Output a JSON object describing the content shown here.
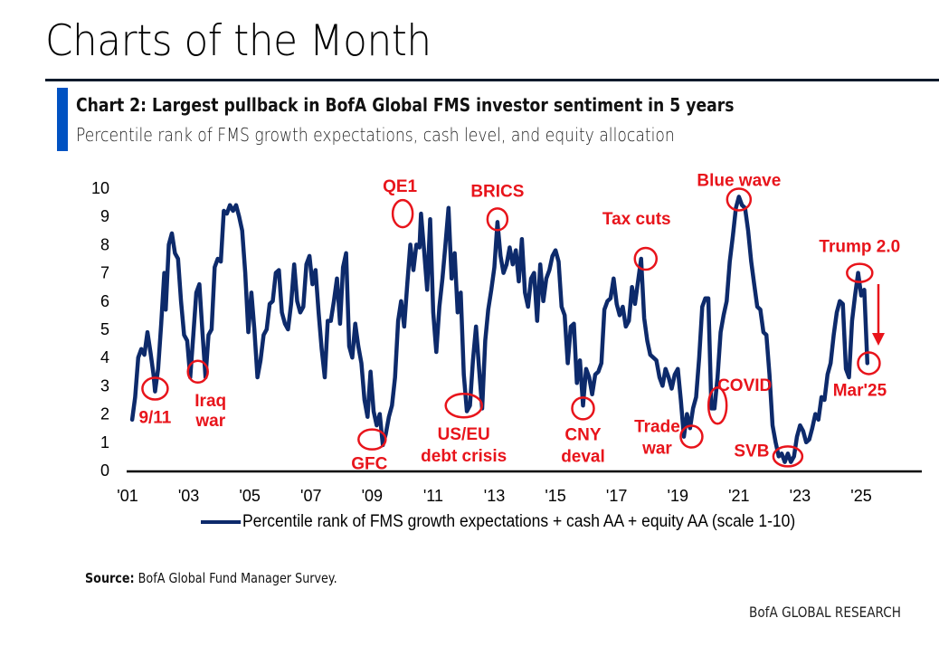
{
  "page": {
    "title": "Charts of the Month",
    "source_label": "Source:",
    "source_text": "BofA Global Fund Manager Survey.",
    "brand": "BofA GLOBAL RESEARCH",
    "accent_color": "#0052c2"
  },
  "chart_data": {
    "type": "line",
    "title": "Chart 2: Largest pullback in BofA Global FMS investor sentiment in 5 years",
    "subtitle": "Percentile rank of FMS growth expectations, cash level, and equity allocation",
    "xlabel": "",
    "ylabel": "",
    "xlim": [
      2001,
      2027
    ],
    "ylim": [
      0,
      10
    ],
    "yticks": [
      0,
      1,
      2,
      3,
      4,
      5,
      6,
      7,
      8,
      9,
      10
    ],
    "xticks": [
      {
        "value": 2001,
        "label": "'01"
      },
      {
        "value": 2003,
        "label": "'03"
      },
      {
        "value": 2005,
        "label": "'05"
      },
      {
        "value": 2007,
        "label": "'07"
      },
      {
        "value": 2009,
        "label": "'09"
      },
      {
        "value": 2011,
        "label": "'11"
      },
      {
        "value": 2013,
        "label": "'13"
      },
      {
        "value": 2015,
        "label": "'15"
      },
      {
        "value": 2017,
        "label": "'17"
      },
      {
        "value": 2019,
        "label": "'19"
      },
      {
        "value": 2021,
        "label": "'21"
      },
      {
        "value": 2023,
        "label": "'23"
      },
      {
        "value": 2025,
        "label": "'25"
      }
    ],
    "grid": false,
    "legend_position": "bottom",
    "line_color": "#0d2a6b",
    "annotation_color": "#e8141b",
    "series": [
      {
        "name": "Percentile rank of FMS growth expectations + cash AA + equity AA (scale 1-10)",
        "points": [
          [
            2001.15,
            1.8
          ],
          [
            2001.25,
            2.6
          ],
          [
            2001.35,
            4.0
          ],
          [
            2001.45,
            4.3
          ],
          [
            2001.55,
            4.1
          ],
          [
            2001.65,
            4.9
          ],
          [
            2001.75,
            4.2
          ],
          [
            2001.85,
            3.4
          ],
          [
            2001.9,
            2.8
          ],
          [
            2002.0,
            3.6
          ],
          [
            2002.1,
            5.2
          ],
          [
            2002.2,
            7.0
          ],
          [
            2002.25,
            5.7
          ],
          [
            2002.35,
            8.0
          ],
          [
            2002.45,
            8.4
          ],
          [
            2002.55,
            7.7
          ],
          [
            2002.65,
            7.5
          ],
          [
            2002.75,
            6.0
          ],
          [
            2002.85,
            4.8
          ],
          [
            2002.95,
            4.6
          ],
          [
            2003.05,
            3.3
          ],
          [
            2003.15,
            4.8
          ],
          [
            2003.25,
            6.3
          ],
          [
            2003.35,
            6.6
          ],
          [
            2003.45,
            4.9
          ],
          [
            2003.55,
            3.3
          ],
          [
            2003.65,
            4.8
          ],
          [
            2003.75,
            5.0
          ],
          [
            2003.85,
            7.2
          ],
          [
            2003.95,
            7.5
          ],
          [
            2004.05,
            7.4
          ],
          [
            2004.15,
            9.2
          ],
          [
            2004.25,
            9.1
          ],
          [
            2004.35,
            9.4
          ],
          [
            2004.45,
            9.2
          ],
          [
            2004.55,
            9.4
          ],
          [
            2004.65,
            9.0
          ],
          [
            2004.75,
            8.5
          ],
          [
            2004.85,
            7.0
          ],
          [
            2004.95,
            4.9
          ],
          [
            2005.05,
            6.3
          ],
          [
            2005.15,
            5.0
          ],
          [
            2005.25,
            3.3
          ],
          [
            2005.35,
            3.9
          ],
          [
            2005.45,
            4.8
          ],
          [
            2005.55,
            5.0
          ],
          [
            2005.65,
            5.9
          ],
          [
            2005.75,
            6.0
          ],
          [
            2005.85,
            7.0
          ],
          [
            2005.95,
            7.1
          ],
          [
            2006.05,
            5.6
          ],
          [
            2006.15,
            5.2
          ],
          [
            2006.25,
            5.0
          ],
          [
            2006.35,
            5.9
          ],
          [
            2006.45,
            7.3
          ],
          [
            2006.55,
            6.0
          ],
          [
            2006.65,
            5.6
          ],
          [
            2006.75,
            5.8
          ],
          [
            2006.85,
            7.3
          ],
          [
            2006.95,
            7.6
          ],
          [
            2007.05,
            6.6
          ],
          [
            2007.15,
            7.1
          ],
          [
            2007.25,
            5.6
          ],
          [
            2007.35,
            4.3
          ],
          [
            2007.45,
            3.3
          ],
          [
            2007.55,
            5.3
          ],
          [
            2007.65,
            5.3
          ],
          [
            2007.75,
            6.0
          ],
          [
            2007.85,
            6.8
          ],
          [
            2007.95,
            5.2
          ],
          [
            2008.05,
            7.2
          ],
          [
            2008.15,
            7.7
          ],
          [
            2008.25,
            4.4
          ],
          [
            2008.35,
            4.0
          ],
          [
            2008.45,
            5.2
          ],
          [
            2008.55,
            4.4
          ],
          [
            2008.65,
            3.8
          ],
          [
            2008.75,
            2.5
          ],
          [
            2008.85,
            1.9
          ],
          [
            2008.95,
            3.5
          ],
          [
            2009.05,
            2.1
          ],
          [
            2009.15,
            1.6
          ],
          [
            2009.25,
            2.0
          ],
          [
            2009.35,
            0.9
          ],
          [
            2009.45,
            1.3
          ],
          [
            2009.55,
            1.9
          ],
          [
            2009.65,
            2.3
          ],
          [
            2009.75,
            3.3
          ],
          [
            2009.85,
            5.3
          ],
          [
            2009.95,
            6.0
          ],
          [
            2010.05,
            5.1
          ],
          [
            2010.15,
            6.6
          ],
          [
            2010.25,
            8.0
          ],
          [
            2010.35,
            7.1
          ],
          [
            2010.45,
            8.0
          ],
          [
            2010.55,
            7.9
          ],
          [
            2010.6,
            9.1
          ],
          [
            2010.7,
            7.8
          ],
          [
            2010.8,
            6.4
          ],
          [
            2010.9,
            8.9
          ],
          [
            2011.0,
            5.6
          ],
          [
            2011.1,
            4.2
          ],
          [
            2011.2,
            5.8
          ],
          [
            2011.3,
            6.8
          ],
          [
            2011.4,
            8.0
          ],
          [
            2011.5,
            9.3
          ],
          [
            2011.6,
            6.8
          ],
          [
            2011.7,
            7.7
          ],
          [
            2011.8,
            5.6
          ],
          [
            2011.9,
            6.3
          ],
          [
            2012.0,
            3.4
          ],
          [
            2012.1,
            2.1
          ],
          [
            2012.2,
            2.3
          ],
          [
            2012.3,
            3.9
          ],
          [
            2012.4,
            5.1
          ],
          [
            2012.5,
            3.6
          ],
          [
            2012.6,
            2.2
          ],
          [
            2012.7,
            4.6
          ],
          [
            2012.8,
            5.7
          ],
          [
            2012.9,
            6.4
          ],
          [
            2013.0,
            7.2
          ],
          [
            2013.1,
            8.8
          ],
          [
            2013.2,
            7.6
          ],
          [
            2013.3,
            7.0
          ],
          [
            2013.4,
            7.3
          ],
          [
            2013.5,
            7.9
          ],
          [
            2013.6,
            7.3
          ],
          [
            2013.7,
            7.8
          ],
          [
            2013.8,
            6.7
          ],
          [
            2013.9,
            8.2
          ],
          [
            2014.0,
            6.3
          ],
          [
            2014.1,
            5.8
          ],
          [
            2014.2,
            6.8
          ],
          [
            2014.3,
            7.0
          ],
          [
            2014.4,
            5.3
          ],
          [
            2014.5,
            7.3
          ],
          [
            2014.6,
            6.0
          ],
          [
            2014.7,
            6.8
          ],
          [
            2014.8,
            7.1
          ],
          [
            2014.9,
            7.6
          ],
          [
            2015.0,
            7.8
          ],
          [
            2015.1,
            7.4
          ],
          [
            2015.2,
            5.8
          ],
          [
            2015.3,
            5.5
          ],
          [
            2015.4,
            3.8
          ],
          [
            2015.5,
            5.1
          ],
          [
            2015.6,
            5.2
          ],
          [
            2015.7,
            3.1
          ],
          [
            2015.8,
            3.9
          ],
          [
            2015.9,
            2.3
          ],
          [
            2016.0,
            3.6
          ],
          [
            2016.1,
            3.3
          ],
          [
            2016.2,
            2.7
          ],
          [
            2016.3,
            3.4
          ],
          [
            2016.4,
            3.5
          ],
          [
            2016.5,
            3.8
          ],
          [
            2016.6,
            5.7
          ],
          [
            2016.7,
            6.0
          ],
          [
            2016.8,
            6.1
          ],
          [
            2016.9,
            6.8
          ],
          [
            2017.0,
            5.9
          ],
          [
            2017.1,
            5.5
          ],
          [
            2017.2,
            5.8
          ],
          [
            2017.3,
            5.1
          ],
          [
            2017.4,
            5.3
          ],
          [
            2017.5,
            6.5
          ],
          [
            2017.6,
            5.9
          ],
          [
            2017.7,
            6.7
          ],
          [
            2017.8,
            7.5
          ],
          [
            2017.9,
            5.4
          ],
          [
            2018.0,
            4.6
          ],
          [
            2018.1,
            4.1
          ],
          [
            2018.2,
            4.0
          ],
          [
            2018.3,
            3.9
          ],
          [
            2018.4,
            3.3
          ],
          [
            2018.5,
            3.0
          ],
          [
            2018.6,
            3.6
          ],
          [
            2018.7,
            3.3
          ],
          [
            2018.8,
            2.9
          ],
          [
            2018.9,
            3.4
          ],
          [
            2019.0,
            3.6
          ],
          [
            2019.1,
            2.5
          ],
          [
            2019.2,
            1.2
          ],
          [
            2019.3,
            2.0
          ],
          [
            2019.4,
            1.5
          ],
          [
            2019.5,
            2.2
          ],
          [
            2019.6,
            2.6
          ],
          [
            2019.7,
            4.0
          ],
          [
            2019.8,
            5.8
          ],
          [
            2019.9,
            6.1
          ],
          [
            2020.0,
            6.1
          ],
          [
            2020.1,
            2.2
          ],
          [
            2020.2,
            2.2
          ],
          [
            2020.3,
            3.3
          ],
          [
            2020.4,
            4.9
          ],
          [
            2020.5,
            5.5
          ],
          [
            2020.6,
            6.0
          ],
          [
            2020.7,
            7.4
          ],
          [
            2020.8,
            8.3
          ],
          [
            2020.9,
            9.3
          ],
          [
            2021.0,
            9.7
          ],
          [
            2021.1,
            9.4
          ],
          [
            2021.2,
            9.3
          ],
          [
            2021.3,
            8.5
          ],
          [
            2021.4,
            7.4
          ],
          [
            2021.5,
            6.6
          ],
          [
            2021.6,
            5.8
          ],
          [
            2021.7,
            5.7
          ],
          [
            2021.8,
            4.9
          ],
          [
            2021.9,
            4.8
          ],
          [
            2022.0,
            3.4
          ],
          [
            2022.1,
            1.6
          ],
          [
            2022.2,
            1.0
          ],
          [
            2022.3,
            0.5
          ],
          [
            2022.4,
            0.6
          ],
          [
            2022.5,
            0.3
          ],
          [
            2022.6,
            0.6
          ],
          [
            2022.7,
            0.3
          ],
          [
            2022.8,
            0.5
          ],
          [
            2022.9,
            1.2
          ],
          [
            2023.0,
            1.6
          ],
          [
            2023.1,
            1.4
          ],
          [
            2023.2,
            1.0
          ],
          [
            2023.3,
            1.1
          ],
          [
            2023.4,
            1.5
          ],
          [
            2023.5,
            2.0
          ],
          [
            2023.6,
            1.8
          ],
          [
            2023.7,
            2.6
          ],
          [
            2023.8,
            2.5
          ],
          [
            2023.9,
            3.4
          ],
          [
            2024.0,
            3.8
          ],
          [
            2024.1,
            4.8
          ],
          [
            2024.2,
            5.6
          ],
          [
            2024.3,
            6.0
          ],
          [
            2024.4,
            5.9
          ],
          [
            2024.5,
            3.6
          ],
          [
            2024.6,
            3.3
          ],
          [
            2024.7,
            5.3
          ],
          [
            2024.8,
            6.2
          ],
          [
            2024.9,
            7.0
          ],
          [
            2025.0,
            6.2
          ],
          [
            2025.1,
            6.4
          ],
          [
            2025.2,
            3.8
          ]
        ]
      }
    ],
    "annotations": [
      {
        "label": "9/11",
        "x": 2001.9,
        "y": 2.9,
        "type": "circle"
      },
      {
        "label": "Iraq war",
        "x": 2003.3,
        "y": 3.5,
        "type": "circle"
      },
      {
        "label": "GFC",
        "x": 2009.0,
        "y": 1.1,
        "type": "circle"
      },
      {
        "label": "QE1",
        "x": 2010.0,
        "y": 9.1,
        "type": "circle"
      },
      {
        "label": "US/EU debt crisis",
        "x": 2012.0,
        "y": 2.3,
        "type": "circle"
      },
      {
        "label": "BRICS",
        "x": 2013.1,
        "y": 8.9,
        "type": "circle"
      },
      {
        "label": "CNY deval",
        "x": 2015.9,
        "y": 2.2,
        "type": "circle"
      },
      {
        "label": "Tax cuts",
        "x": 2017.95,
        "y": 7.5,
        "type": "circle"
      },
      {
        "label": "Trade war",
        "x": 2019.45,
        "y": 1.2,
        "type": "circle"
      },
      {
        "label": "COVID",
        "x": 2020.3,
        "y": 2.3,
        "type": "ellipse"
      },
      {
        "label": "Blue wave",
        "x": 2021.0,
        "y": 9.6,
        "type": "circle"
      },
      {
        "label": "SVB",
        "x": 2022.6,
        "y": 0.5,
        "type": "circle"
      },
      {
        "label": "Trump 2.0",
        "x": 2024.95,
        "y": 7.0,
        "type": "circle"
      },
      {
        "label": "Mar'25",
        "x": 2025.25,
        "y": 3.8,
        "type": "circle"
      }
    ]
  }
}
